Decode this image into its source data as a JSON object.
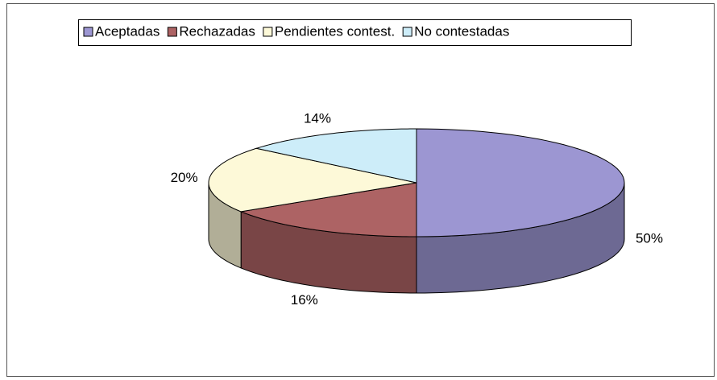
{
  "chart_data": {
    "type": "pie",
    "categories": [
      "Aceptadas",
      "Rechazadas",
      "Pendientes contest.",
      "No contestadas"
    ],
    "values": [
      50,
      16,
      20,
      14
    ],
    "value_labels": [
      "50%",
      "16%",
      "20%",
      "14%"
    ],
    "colors": [
      "#9c96d2",
      "#ad6364",
      "#fdf9d8",
      "#cdedf9"
    ],
    "legend": "top"
  }
}
